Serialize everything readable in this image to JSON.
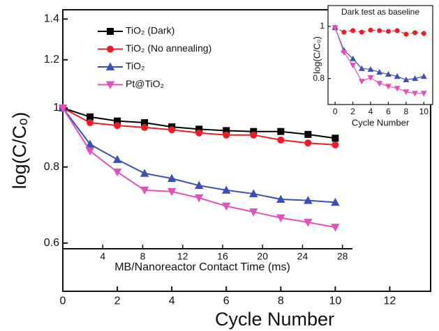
{
  "chart_data": [
    {
      "type": "line",
      "xlabel": "Cycle Number",
      "ylabel": "log(C/Cₒ)",
      "ylog": true,
      "legend": "upper left",
      "x": [
        0,
        1,
        2,
        3,
        4,
        5,
        6,
        7,
        8,
        9,
        10
      ],
      "xlim": [
        0,
        13.5
      ],
      "xticks": [
        0,
        2,
        4,
        6,
        8,
        10,
        12
      ],
      "ylim": [
        0.5,
        1.45
      ],
      "yticks": [
        0.6,
        0.8,
        1,
        1.2,
        1.4
      ],
      "x2label": "MB/Nanoreactor Contact Time (ms)",
      "x2lim": [
        0,
        29
      ],
      "x2ticks": [
        4,
        8,
        12,
        16,
        20,
        24,
        28
      ],
      "series": [
        {
          "name": "TiO₂ (Dark)",
          "color": "#000000",
          "marker": "square",
          "values": [
            1,
            0.967,
            0.952,
            0.946,
            0.931,
            0.923,
            0.918,
            0.915,
            0.915,
            0.905,
            0.892
          ]
        },
        {
          "name": "TiO₂ (No annealing)",
          "color": "#ee1c25",
          "marker": "circle",
          "values": [
            1,
            0.946,
            0.936,
            0.929,
            0.921,
            0.91,
            0.903,
            0.903,
            0.886,
            0.876,
            0.87
          ]
        },
        {
          "name": "TiO₂",
          "color": "#3a4fb8",
          "marker": "triangle-up",
          "values": [
            1,
            0.872,
            0.823,
            0.781,
            0.766,
            0.746,
            0.733,
            0.723,
            0.708,
            0.705,
            0.7
          ]
        },
        {
          "name": "Pt@TiO₂",
          "color": "#e052b8",
          "marker": "triangle-down",
          "values": [
            1,
            0.85,
            0.785,
            0.733,
            0.729,
            0.712,
            0.69,
            0.675,
            0.66,
            0.649,
            0.637
          ]
        }
      ]
    },
    {
      "type": "line",
      "title": "Dark test as baseline",
      "xlabel": "Cycle Number",
      "ylabel": "log(C/C₀)",
      "x": [
        0,
        1,
        2,
        3,
        4,
        5,
        6,
        7,
        8,
        9,
        10
      ],
      "xlim": [
        -0.8,
        11
      ],
      "xticks": [
        0,
        2,
        4,
        6,
        8,
        10
      ],
      "ylim": [
        0.7,
        1.08
      ],
      "yticks": [
        0.8,
        1
      ],
      "series": [
        {
          "color": "#ee1c25",
          "marker": "circle",
          "dashed": true,
          "values": [
            0.995,
            0.978,
            0.984,
            0.978,
            0.986,
            0.984,
            0.981,
            0.984,
            0.97,
            0.976,
            0.973
          ]
        },
        {
          "color": "#3a4fb8",
          "marker": "triangle-up",
          "values": [
            0.995,
            0.908,
            0.876,
            0.838,
            0.835,
            0.824,
            0.816,
            0.808,
            0.795,
            0.8,
            0.808
          ]
        },
        {
          "color": "#e052b8",
          "marker": "triangle-down",
          "values": [
            0.995,
            0.9,
            0.851,
            0.789,
            0.803,
            0.781,
            0.77,
            0.762,
            0.749,
            0.743,
            0.743
          ]
        }
      ]
    }
  ]
}
